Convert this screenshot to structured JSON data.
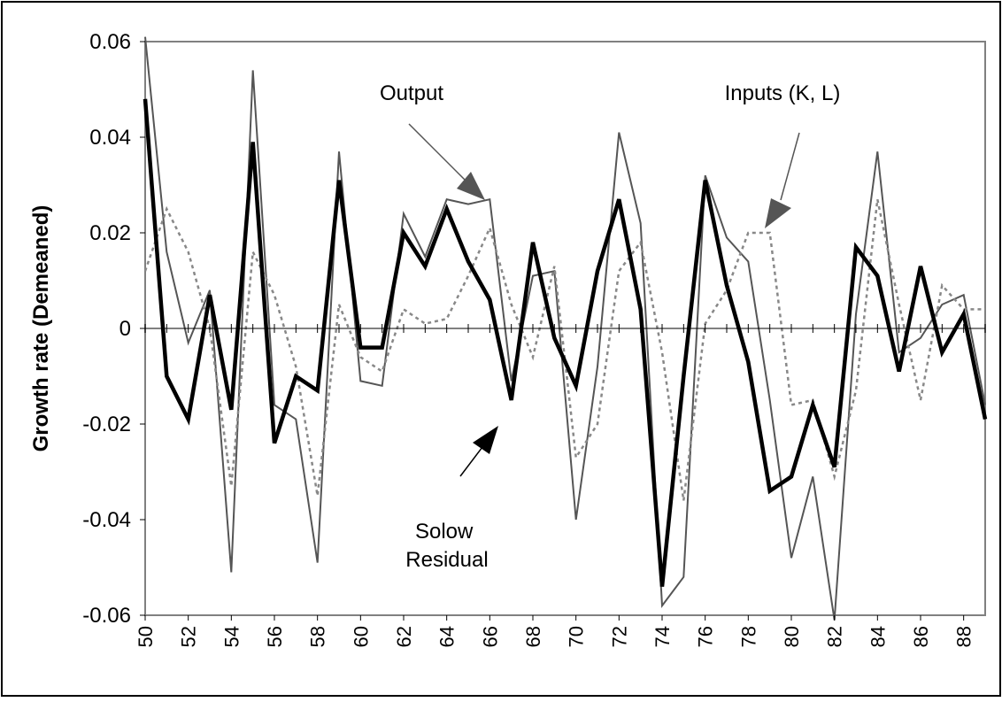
{
  "chart_data": {
    "type": "line",
    "title": "",
    "xlabel": "",
    "ylabel": "Growth rate (Demeaned)",
    "ylim": [
      -0.06,
      0.06
    ],
    "xlim": [
      50,
      89
    ],
    "y_ticks": [
      "0.06",
      "0.04",
      "0.02",
      "0",
      "-0.02",
      "-0.04",
      "-0.06"
    ],
    "y_tick_values": [
      0.06,
      0.04,
      0.02,
      0,
      -0.02,
      -0.04,
      -0.06
    ],
    "x_tick_labels": [
      "50",
      "52",
      "54",
      "56",
      "58",
      "60",
      "62",
      "64",
      "66",
      "68",
      "70",
      "72",
      "74",
      "76",
      "78",
      "80",
      "82",
      "84",
      "86",
      "88"
    ],
    "x_tick_values": [
      50,
      52,
      54,
      56,
      58,
      60,
      62,
      64,
      66,
      68,
      70,
      72,
      74,
      76,
      78,
      80,
      82,
      84,
      86,
      88
    ],
    "grid": false,
    "x": [
      50,
      51,
      52,
      53,
      54,
      55,
      56,
      57,
      58,
      59,
      60,
      61,
      62,
      63,
      64,
      65,
      66,
      67,
      68,
      69,
      70,
      71,
      72,
      73,
      74,
      75,
      76,
      77,
      78,
      79,
      80,
      81,
      82,
      83,
      84,
      85,
      86,
      87,
      88,
      89
    ],
    "series": [
      {
        "name": "Output",
        "color": "#555555",
        "style": "solid-thin",
        "values": [
          0.061,
          0.016,
          -0.003,
          0.008,
          -0.051,
          0.054,
          -0.016,
          -0.019,
          -0.049,
          0.037,
          -0.011,
          -0.012,
          0.024,
          0.015,
          0.027,
          0.026,
          0.027,
          -0.011,
          0.011,
          0.012,
          -0.04,
          -0.008,
          0.041,
          0.022,
          -0.058,
          -0.052,
          0.032,
          0.019,
          0.014,
          -0.015,
          -0.048,
          -0.031,
          -0.061,
          0.003,
          0.037,
          -0.005,
          -0.002,
          0.005,
          0.007,
          -0.016
        ]
      },
      {
        "name": "Inputs (K, L)",
        "color": "#888888",
        "style": "dotted",
        "values": [
          0.012,
          0.025,
          0.016,
          0.0,
          -0.033,
          0.016,
          0.007,
          -0.008,
          -0.035,
          0.005,
          -0.006,
          -0.009,
          0.004,
          0.001,
          0.002,
          0.011,
          0.021,
          0.005,
          -0.006,
          0.013,
          -0.027,
          -0.02,
          0.012,
          0.018,
          -0.005,
          -0.036,
          0.001,
          0.008,
          0.02,
          0.02,
          -0.016,
          -0.015,
          -0.031,
          -0.013,
          0.027,
          0.005,
          -0.015,
          0.009,
          0.004,
          0.004
        ]
      },
      {
        "name": "Solow Residual",
        "color": "#000000",
        "style": "solid-thick",
        "values": [
          0.048,
          -0.01,
          -0.019,
          0.007,
          -0.017,
          0.039,
          -0.024,
          -0.01,
          -0.013,
          0.031,
          -0.004,
          -0.004,
          0.02,
          0.013,
          0.025,
          0.014,
          0.006,
          -0.015,
          0.018,
          -0.002,
          -0.012,
          0.012,
          0.027,
          0.004,
          -0.054,
          -0.01,
          0.031,
          0.009,
          -0.007,
          -0.034,
          -0.031,
          -0.016,
          -0.029,
          0.017,
          0.011,
          -0.009,
          0.013,
          -0.005,
          0.003,
          -0.019
        ]
      }
    ],
    "annotations": [
      {
        "id": "output",
        "lines": [
          "Output"
        ]
      },
      {
        "id": "inputs",
        "lines": [
          "Inputs (K, L)"
        ]
      },
      {
        "id": "residual",
        "lines": [
          "Solow",
          "Residual"
        ]
      }
    ]
  }
}
